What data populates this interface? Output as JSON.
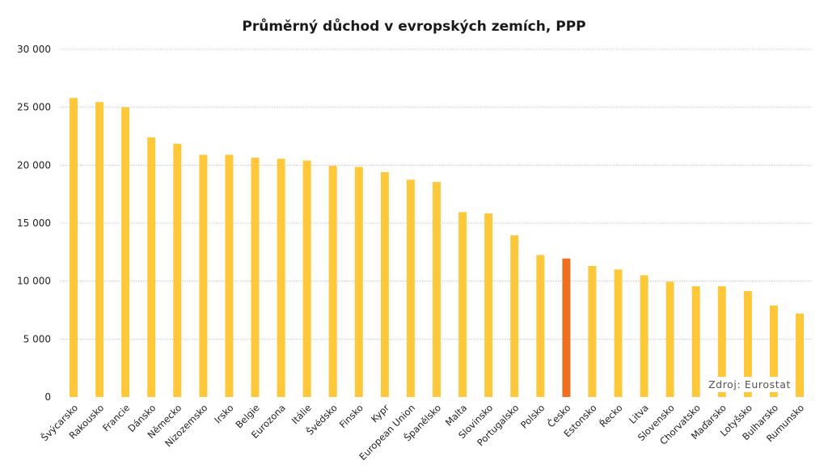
{
  "colors": {
    "bar": "#FFC83A",
    "highlight": "#EE6F22",
    "grid": "#C8C8C8",
    "text": "#222222"
  },
  "source_label": "Zdroj: Eurostat",
  "chart_data": {
    "type": "bar",
    "title": "Průměrný důchod v evropských zemích, PPP",
    "xlabel": "",
    "ylabel": "",
    "ylim": [
      0,
      30000
    ],
    "yticks": [
      0,
      5000,
      10000,
      15000,
      20000,
      25000,
      30000
    ],
    "ytick_labels": [
      "0",
      "5 000",
      "10 000",
      "15 000",
      "20 000",
      "25 000",
      "30 000"
    ],
    "grid": true,
    "categories": [
      "Švýcarsko",
      "Rakousko",
      "Francie",
      "Dánsko",
      "Německo",
      "Nizozemsko",
      "Irsko",
      "Belgie",
      "Eurozona",
      "Itálie",
      "Švédsko",
      "Finsko",
      "Kypr",
      "European Union",
      "Španělsko",
      "Malta",
      "Slovinsko",
      "Portugalsko",
      "Polsko",
      "Česko",
      "Estonsko",
      "Řecko",
      "Litva",
      "Slovensko",
      "Chorvatsko",
      "Maďarsko",
      "Lotyšsko",
      "Bulharsko",
      "Rumunsko"
    ],
    "values": [
      25800,
      25450,
      25000,
      22400,
      21850,
      20900,
      20900,
      20650,
      20550,
      20400,
      19950,
      19850,
      19400,
      18750,
      18550,
      15950,
      15850,
      13950,
      12250,
      11950,
      11300,
      11000,
      10500,
      9950,
      9550,
      9550,
      9150,
      7900,
      7200
    ],
    "highlight_category": "Česko"
  }
}
